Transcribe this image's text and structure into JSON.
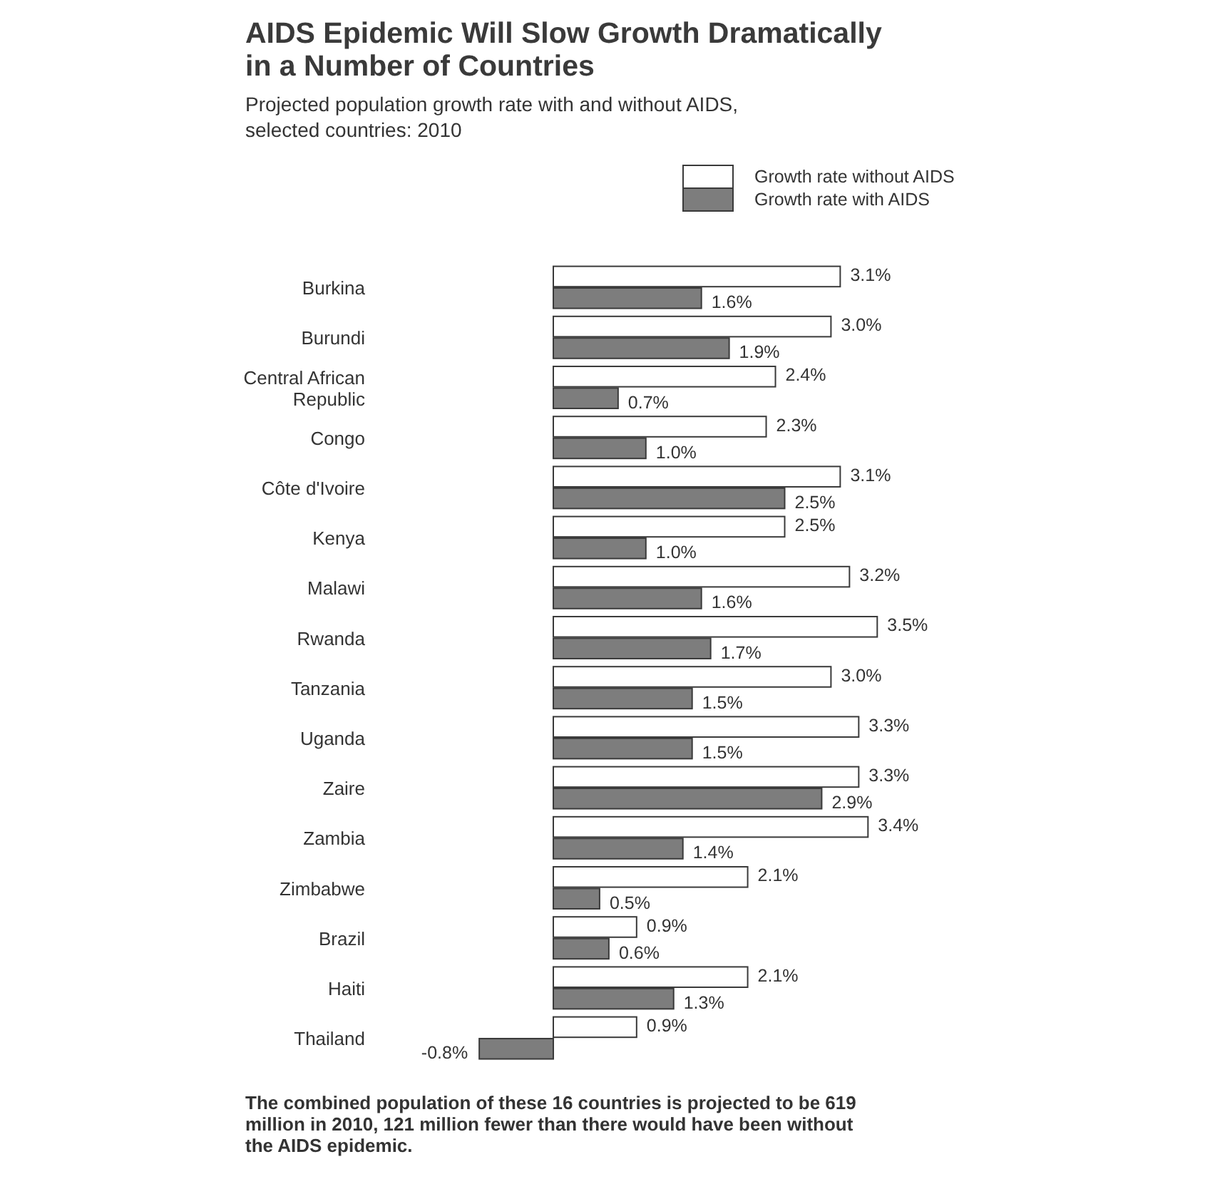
{
  "chart_data": {
    "type": "bar",
    "orientation": "horizontal",
    "title": "AIDS Epidemic Will Slow Growth Dramatically\nin a Number of Countries",
    "subtitle": "Projected population growth rate with and without AIDS,\nselected countries:  2010",
    "categories": [
      "Burkina",
      "Burundi",
      "Central African Republic",
      "Congo",
      "Côte d'Ivoire",
      "Kenya",
      "Malawi",
      "Rwanda",
      "Tanzania",
      "Uganda",
      "Zaire",
      "Zambia",
      "Zimbabwe",
      "Brazil",
      "Haiti",
      "Thailand"
    ],
    "series": [
      {
        "name": "Growth rate without AIDS",
        "color": "#ffffff",
        "values": [
          3.1,
          3.0,
          2.4,
          2.3,
          3.1,
          2.5,
          3.2,
          3.5,
          3.0,
          3.3,
          3.3,
          3.4,
          2.1,
          0.9,
          2.1,
          0.9
        ],
        "value_labels": [
          "3.1%",
          "3.0%",
          "2.4%",
          "2.3%",
          "3.1%",
          "2.5%",
          "3.2%",
          "3.5%",
          "3.0%",
          "3.3%",
          "3.3%",
          "3.4%",
          "2.1%",
          "0.9%",
          "2.1%",
          "0.9%"
        ]
      },
      {
        "name": "Growth rate with AIDS",
        "color": "#7d7d7d",
        "values": [
          1.6,
          1.9,
          0.7,
          1.0,
          2.5,
          1.0,
          1.6,
          1.7,
          1.5,
          1.5,
          2.9,
          1.4,
          0.5,
          0.6,
          1.3,
          -0.8
        ],
        "value_labels": [
          "1.6%",
          "1.9%",
          "0.7%",
          "1.0%",
          "2.5%",
          "1.0%",
          "1.6%",
          "1.7%",
          "1.5%",
          "1.5%",
          "2.9%",
          "1.4%",
          "0.5%",
          "0.6%",
          "1.3%",
          "-0.8%"
        ]
      }
    ],
    "legend": "top right",
    "annotations": [
      "The combined population of these 16 countries is projected to be 619\nmillion in 2010, 121 million fewer than there would have been without\nthe AIDS epidemic."
    ]
  }
}
